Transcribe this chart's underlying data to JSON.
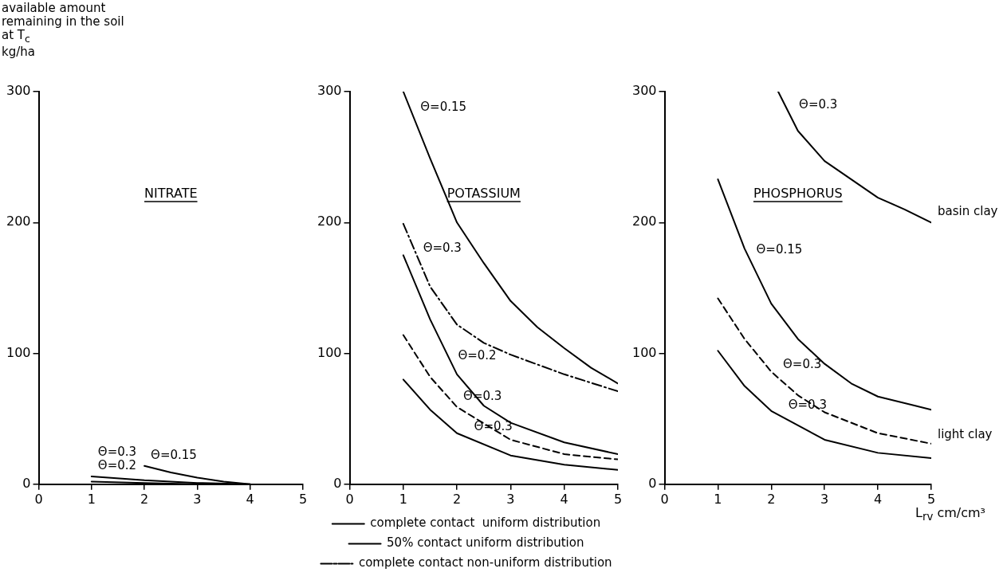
{
  "chart_data": [
    {
      "type": "line",
      "title": "NITRATE",
      "ylabel": "available amount\nremaining in the soil\nat T$_{c}$\nkg/ha",
      "xlim": [
        0,
        5
      ],
      "xticks": [
        0,
        1,
        2,
        3,
        4,
        5
      ],
      "ylim": [
        0,
        300
      ],
      "yticks": [
        0,
        100,
        200,
        300
      ],
      "grid": false,
      "legend": false,
      "marker": "none",
      "series": [
        {
          "color": "#000000",
          "line_style": "solid",
          "x": [
            2,
            2.5,
            3,
            3.5,
            4
          ],
          "values": [
            14,
            9,
            5,
            2,
            0
          ]
        },
        {
          "color": "#000000",
          "line_style": "solid",
          "x": [
            1,
            2,
            3,
            4
          ],
          "values": [
            6,
            3,
            1,
            0
          ]
        },
        {
          "color": "#000000",
          "line_style": "solid",
          "x": [
            1,
            2,
            3
          ],
          "values": [
            2,
            1,
            0
          ]
        }
      ],
      "annotations": [
        {
          "text": "Θ=0.15",
          "x": 2,
          "y": 14
        },
        {
          "text": "Θ=0.2",
          "x": 1,
          "y": 6
        },
        {
          "text": "Θ=0.3",
          "x": 1,
          "y": 2
        }
      ]
    },
    {
      "type": "line",
      "title": "POTASSIUM",
      "xlim": [
        0,
        5
      ],
      "xticks": [
        0,
        1,
        2,
        3,
        4,
        5
      ],
      "ylim": [
        0,
        300
      ],
      "yticks": [
        0,
        100,
        200,
        300
      ],
      "grid": false,
      "legend": "bottom",
      "marker": "none",
      "series": [
        {
          "name": "complete contact  uniform distribution",
          "color": "#000000",
          "line_style": "solid",
          "x": [
            1,
            1.5,
            2,
            2.5,
            3,
            3.5,
            4,
            4.5,
            5
          ],
          "values": [
            300,
            249,
            200,
            169,
            140,
            120,
            104,
            89,
            77
          ]
        },
        {
          "name": "50% contact uniform distribution",
          "color": "#000000",
          "line_style": "dashed",
          "x": [
            1,
            1.5,
            2,
            3,
            4,
            5
          ],
          "values": [
            114,
            82,
            59,
            34,
            23,
            19
          ]
        },
        {
          "name": "complete contact non-uniform distribution",
          "color": "#000000",
          "line_style": "dashdot",
          "x": [
            1,
            1.5,
            2,
            2.5,
            3,
            4,
            5
          ],
          "values": [
            199,
            151,
            122,
            108,
            99,
            84,
            71
          ]
        },
        {
          "color": "#000000",
          "line_style": "solid",
          "x": [
            1,
            1.5,
            2,
            2.5,
            3,
            4,
            5
          ],
          "values": [
            175,
            126,
            84,
            60,
            47,
            32,
            23
          ]
        },
        {
          "color": "#000000",
          "line_style": "solid",
          "x": [
            1,
            1.5,
            2,
            3,
            4,
            5
          ],
          "values": [
            80,
            57,
            39,
            22,
            15,
            11
          ]
        }
      ],
      "annotations": [
        {
          "text": "Θ=0.15",
          "x": 1.2,
          "y": 280
        },
        {
          "text": "Θ=0.3",
          "x": 1.25,
          "y": 172
        },
        {
          "text": "Θ=0.2",
          "x": 1.9,
          "y": 90
        },
        {
          "text": "Θ=0.3",
          "x": 2,
          "y": 59
        },
        {
          "text": "Θ=0.3",
          "x": 2.2,
          "y": 36
        }
      ]
    },
    {
      "type": "line",
      "title": "PHOSPHORUS",
      "xlabel": "L$_{rv}$ cm/cm³",
      "xlim": [
        0,
        5
      ],
      "xticks": [
        0,
        1,
        2,
        3,
        4,
        5
      ],
      "ylim": [
        0,
        300
      ],
      "yticks": [
        0,
        100,
        200,
        300
      ],
      "grid": false,
      "legend": false,
      "marker": "none",
      "series": [
        {
          "color": "#000000",
          "line_style": "solid",
          "x": [
            2.13,
            2.5,
            3,
            3.5,
            4,
            4.5,
            5
          ],
          "values": [
            300,
            270,
            247,
            233,
            219,
            210,
            200
          ]
        },
        {
          "color": "#000000",
          "line_style": "solid",
          "x": [
            1,
            1.5,
            2,
            2.5,
            3,
            3.5,
            4,
            5
          ],
          "values": [
            233,
            180,
            138,
            111,
            92,
            77,
            67,
            57
          ]
        },
        {
          "color": "#000000",
          "line_style": "dashed",
          "x": [
            1,
            1.5,
            2,
            2.5,
            3,
            4,
            5
          ],
          "values": [
            142,
            111,
            86,
            68,
            55,
            39,
            31
          ]
        },
        {
          "color": "#000000",
          "line_style": "solid",
          "x": [
            1,
            1.5,
            2,
            3,
            4,
            5
          ],
          "values": [
            102,
            75,
            56,
            34,
            24,
            20
          ]
        }
      ],
      "annotations": [
        {
          "text": "Θ=0.3",
          "x": 2.4,
          "y": 282
        },
        {
          "text": "Θ=0.15",
          "x": 1.6,
          "y": 171
        },
        {
          "text": "Θ=0.3",
          "x": 2.1,
          "y": 83
        },
        {
          "text": "Θ=0.3",
          "x": 2.2,
          "y": 52
        },
        {
          "text": "basin clay",
          "x": 5,
          "y": 200
        },
        {
          "text": "light clay",
          "x": 5,
          "y": 30
        }
      ]
    }
  ]
}
